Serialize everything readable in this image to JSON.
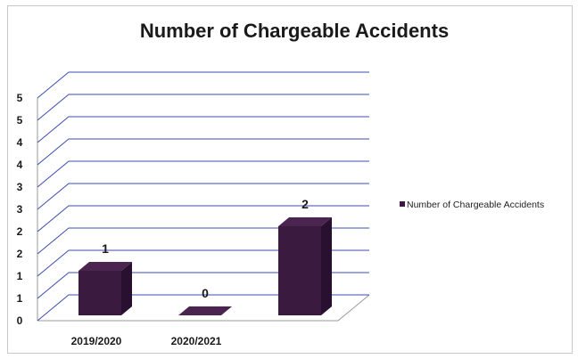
{
  "chart_data": {
    "type": "bar",
    "title": "Number of Chargeable Accidents",
    "categories": [
      "2019/2020",
      "2020/2021",
      ""
    ],
    "series": [
      {
        "name": "Number of Chargeable Accidents",
        "values": [
          1,
          0,
          2
        ]
      }
    ],
    "data_labels": [
      "1",
      "0",
      "2"
    ],
    "y_tick_labels": [
      "0",
      "1",
      "1",
      "2",
      "2",
      "3",
      "3",
      "4",
      "4",
      "5",
      "5"
    ],
    "ylim": [
      0,
      5
    ],
    "y_step": 0.5,
    "grid": true,
    "legend_position": "right",
    "bar_color": "#3a1a3f"
  }
}
